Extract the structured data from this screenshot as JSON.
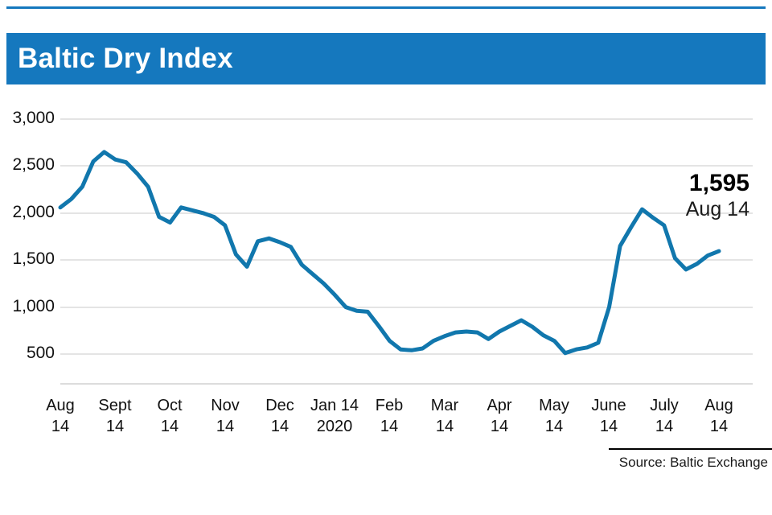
{
  "header": {
    "title": "Baltic Dry Index"
  },
  "footer": {
    "source": "Source: Baltic Exchange"
  },
  "colors": {
    "brand_blue": "#1578be",
    "line_blue": "#1177ad",
    "grid_gray": "#c9c9c9",
    "text_black": "#111111"
  },
  "chart_data": {
    "type": "line",
    "title": "Baltic Dry Index",
    "legend": "none",
    "grid": "horizontal",
    "ylim": [
      500,
      3000
    ],
    "y_ticks": [
      3000,
      2500,
      2000,
      1500,
      1000,
      500
    ],
    "y_tick_labels": [
      "3,000",
      "2,500",
      "2,000",
      "1,500",
      "1,000",
      "500"
    ],
    "x_ticks": [
      {
        "line1": "Aug",
        "line2": "14"
      },
      {
        "line1": "Sept",
        "line2": "14"
      },
      {
        "line1": "Oct",
        "line2": "14"
      },
      {
        "line1": "Nov",
        "line2": "14"
      },
      {
        "line1": "Dec",
        "line2": "14"
      },
      {
        "line1": "Jan 14",
        "line2": "2020"
      },
      {
        "line1": "Feb",
        "line2": "14"
      },
      {
        "line1": "Mar",
        "line2": "14"
      },
      {
        "line1": "Apr",
        "line2": "14"
      },
      {
        "line1": "May",
        "line2": "14"
      },
      {
        "line1": "June",
        "line2": "14"
      },
      {
        "line1": "July",
        "line2": "14"
      },
      {
        "line1": "Aug",
        "line2": "14"
      }
    ],
    "series": [
      {
        "name": "Baltic Dry Index",
        "values": [
          2060,
          2150,
          2280,
          2550,
          2650,
          2570,
          2540,
          2420,
          2280,
          1960,
          1900,
          2060,
          2030,
          2000,
          1960,
          1870,
          1560,
          1430,
          1700,
          1730,
          1690,
          1640,
          1450,
          1350,
          1250,
          1130,
          1000,
          960,
          950,
          800,
          640,
          550,
          540,
          560,
          640,
          690,
          730,
          740,
          730,
          660,
          740,
          800,
          860,
          790,
          700,
          640,
          510,
          550,
          570,
          620,
          1000,
          1650,
          1850,
          2040,
          1950,
          1870,
          1520,
          1400,
          1460,
          1550,
          1595
        ]
      }
    ],
    "annotation": {
      "value": "1,595",
      "label": "Aug 14"
    }
  }
}
